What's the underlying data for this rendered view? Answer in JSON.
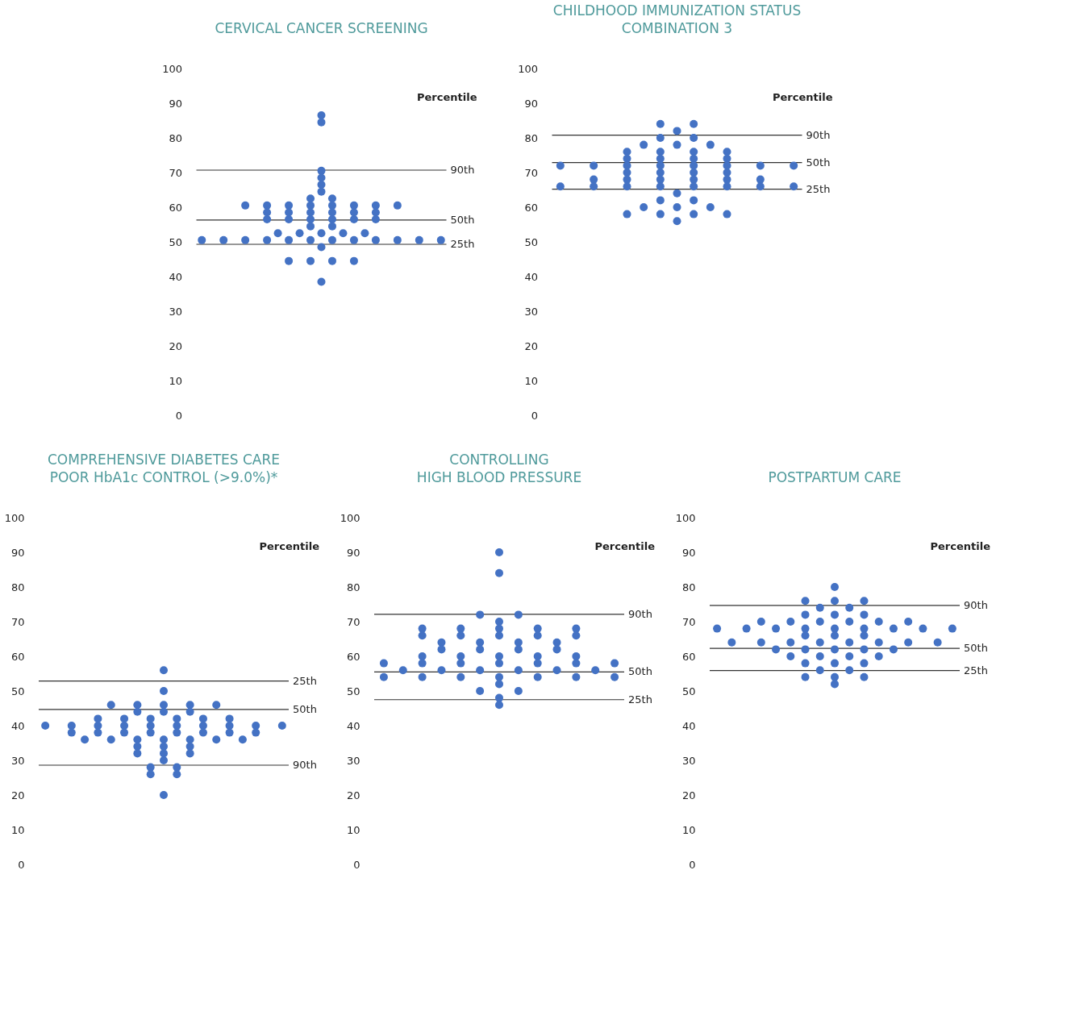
{
  "chart_data": [
    {
      "type": "scatter",
      "title": "CERVICAL CANCER SCREENING",
      "marker": "circle",
      "tick_labels": "y",
      "ylim": [
        0,
        100
      ],
      "yticks": [
        0,
        10,
        20,
        30,
        40,
        50,
        60,
        70,
        80,
        90,
        100
      ],
      "annotations": [
        "Percentile"
      ],
      "ref_lines": [
        {
          "axis": "y",
          "value": 70.7,
          "label": "90th"
        },
        {
          "axis": "y",
          "value": 56.3,
          "label": "50th"
        },
        {
          "axis": "y",
          "value": 49.3,
          "label": "25th"
        }
      ],
      "categories": [
        null,
        null,
        null,
        null,
        null,
        null,
        null,
        null,
        null,
        null,
        null,
        null,
        null,
        null,
        null,
        null,
        null,
        null,
        null,
        null,
        null,
        null,
        null
      ],
      "series": [
        {
          "color": "#4472c4",
          "values": [
            50.5,
            null,
            50.5,
            null,
            60.5,
            null,
            60.5,
            52.5,
            60.5,
            52.5,
            62.5,
            86.5,
            62.5,
            52.5,
            60.5,
            52.5,
            60.5,
            null,
            60.5,
            null,
            50.5,
            null,
            50.5
          ]
        },
        {
          "color": "#4472c4",
          "values": [
            null,
            null,
            null,
            null,
            50.5,
            null,
            58.5,
            null,
            58.5,
            null,
            60.5,
            84.5,
            60.5,
            null,
            58.5,
            null,
            58.5,
            null,
            50.5,
            null,
            null,
            null,
            null
          ]
        },
        {
          "color": "#4472c4",
          "values": [
            null,
            null,
            null,
            null,
            null,
            null,
            56.5,
            null,
            56.5,
            null,
            58.5,
            70.5,
            58.5,
            null,
            56.5,
            null,
            56.5,
            null,
            null,
            null,
            null,
            null,
            null
          ]
        },
        {
          "color": "#4472c4",
          "values": [
            null,
            null,
            null,
            null,
            null,
            null,
            50.5,
            null,
            50.5,
            null,
            56.5,
            68.5,
            56.5,
            null,
            50.5,
            null,
            50.5,
            null,
            null,
            null,
            null,
            null,
            null
          ]
        },
        {
          "color": "#4472c4",
          "values": [
            null,
            null,
            null,
            null,
            null,
            null,
            null,
            null,
            44.5,
            null,
            54.5,
            66.5,
            54.5,
            null,
            44.5,
            null,
            null,
            null,
            null,
            null,
            null,
            null,
            null
          ]
        },
        {
          "color": "#4472c4",
          "values": [
            null,
            null,
            null,
            null,
            null,
            null,
            null,
            null,
            null,
            null,
            50.5,
            64.5,
            50.5,
            null,
            null,
            null,
            null,
            null,
            null,
            null,
            null,
            null,
            null
          ]
        },
        {
          "color": "#4472c4",
          "values": [
            null,
            null,
            null,
            null,
            null,
            null,
            null,
            null,
            null,
            null,
            44.5,
            52.5,
            44.5,
            null,
            null,
            null,
            null,
            null,
            null,
            null,
            null,
            null,
            null
          ]
        },
        {
          "color": "#4472c4",
          "values": [
            null,
            null,
            null,
            null,
            null,
            null,
            null,
            null,
            null,
            null,
            null,
            48.5,
            null,
            null,
            null,
            null,
            null,
            null,
            null,
            null,
            null,
            null,
            null
          ]
        },
        {
          "color": "#4472c4",
          "values": [
            null,
            null,
            null,
            null,
            null,
            null,
            null,
            null,
            null,
            null,
            null,
            38.5,
            null,
            null,
            null,
            null,
            null,
            null,
            null,
            null,
            null,
            null,
            null
          ]
        }
      ]
    },
    {
      "type": "scatter",
      "title": "CHILDHOOD IMMUNIZATION STATUS\nCOMBINATION 3",
      "marker": "circle",
      "tick_labels": "y",
      "ylim": [
        0,
        100
      ],
      "yticks": [
        0,
        10,
        20,
        30,
        40,
        50,
        60,
        70,
        80,
        90,
        100
      ],
      "annotations": [
        "Percentile"
      ],
      "ref_lines": [
        {
          "axis": "y",
          "value": 80.8,
          "label": "90th"
        },
        {
          "axis": "y",
          "value": 72.9,
          "label": "50th"
        },
        {
          "axis": "y",
          "value": 65.2,
          "label": "25th"
        }
      ],
      "categories": [
        null,
        null,
        null,
        null,
        null,
        null,
        null,
        null,
        null,
        null,
        null,
        null,
        null,
        null,
        null
      ],
      "series": [
        {
          "color": "#4472c4",
          "values": [
            72,
            null,
            72,
            null,
            76,
            78,
            84,
            82,
            84,
            78,
            76,
            null,
            72,
            null,
            72
          ]
        },
        {
          "color": "#4472c4",
          "values": [
            66,
            null,
            68,
            null,
            74,
            60,
            80,
            78,
            80,
            60,
            74,
            null,
            68,
            null,
            66
          ]
        },
        {
          "color": "#4472c4",
          "values": [
            null,
            null,
            66,
            null,
            72,
            null,
            76,
            64,
            76,
            null,
            72,
            null,
            66,
            null,
            null
          ]
        },
        {
          "color": "#4472c4",
          "values": [
            null,
            null,
            null,
            null,
            70,
            null,
            74,
            60,
            74,
            null,
            70,
            null,
            null,
            null,
            null
          ]
        },
        {
          "color": "#4472c4",
          "values": [
            null,
            null,
            null,
            null,
            68,
            null,
            72,
            56,
            72,
            null,
            68,
            null,
            null,
            null,
            null
          ]
        },
        {
          "color": "#4472c4",
          "values": [
            null,
            null,
            null,
            null,
            66,
            null,
            70,
            null,
            70,
            null,
            66,
            null,
            null,
            null,
            null
          ]
        },
        {
          "color": "#4472c4",
          "values": [
            null,
            null,
            null,
            null,
            58,
            null,
            68,
            null,
            68,
            null,
            58,
            null,
            null,
            null,
            null
          ]
        },
        {
          "color": "#4472c4",
          "values": [
            null,
            null,
            null,
            null,
            null,
            null,
            66,
            null,
            66,
            null,
            null,
            null,
            null,
            null,
            null
          ]
        },
        {
          "color": "#4472c4",
          "values": [
            null,
            null,
            null,
            null,
            null,
            null,
            62,
            null,
            62,
            null,
            null,
            null,
            null,
            null,
            null
          ]
        },
        {
          "color": "#4472c4",
          "values": [
            null,
            null,
            null,
            null,
            null,
            null,
            58,
            null,
            58,
            null,
            null,
            null,
            null,
            null,
            null
          ]
        }
      ]
    },
    {
      "type": "scatter",
      "title": "COMPREHENSIVE DIABETES CARE\nPOOR HbA1c CONTROL (>9.0%)*",
      "marker": "circle",
      "tick_labels": "y",
      "ylim": [
        0,
        100
      ],
      "yticks": [
        0,
        10,
        20,
        30,
        40,
        50,
        60,
        70,
        80,
        90,
        100
      ],
      "annotations": [
        "Percentile"
      ],
      "ref_lines": [
        {
          "axis": "y",
          "value": 52.9,
          "label": "25th"
        },
        {
          "axis": "y",
          "value": 44.7,
          "label": "50th"
        },
        {
          "axis": "y",
          "value": 28.6,
          "label": "90th"
        }
      ],
      "categories": [
        null,
        null,
        null,
        null,
        null,
        null,
        null,
        null,
        null,
        null,
        null,
        null,
        null,
        null,
        null,
        null,
        null,
        null,
        null
      ],
      "series": [
        {
          "color": "#4472c4",
          "values": [
            40,
            null,
            40,
            36,
            42,
            46,
            42,
            46,
            42,
            56,
            42,
            46,
            42,
            46,
            42,
            36,
            40,
            null,
            40
          ]
        },
        {
          "color": "#4472c4",
          "values": [
            null,
            null,
            38,
            null,
            40,
            36,
            40,
            44,
            40,
            50,
            40,
            44,
            40,
            36,
            40,
            null,
            38,
            null,
            null
          ]
        },
        {
          "color": "#4472c4",
          "values": [
            null,
            null,
            null,
            null,
            38,
            null,
            38,
            36,
            38,
            46,
            38,
            36,
            38,
            null,
            38,
            null,
            null,
            null,
            null
          ]
        },
        {
          "color": "#4472c4",
          "values": [
            null,
            null,
            null,
            null,
            null,
            null,
            null,
            34,
            28,
            44,
            28,
            34,
            null,
            null,
            null,
            null,
            null,
            null,
            null
          ]
        },
        {
          "color": "#4472c4",
          "values": [
            null,
            null,
            null,
            null,
            null,
            null,
            null,
            32,
            26,
            36,
            26,
            32,
            null,
            null,
            null,
            null,
            null,
            null,
            null
          ]
        },
        {
          "color": "#4472c4",
          "values": [
            null,
            null,
            null,
            null,
            null,
            null,
            null,
            null,
            null,
            34,
            null,
            null,
            null,
            null,
            null,
            null,
            null,
            null,
            null
          ]
        },
        {
          "color": "#4472c4",
          "values": [
            null,
            null,
            null,
            null,
            null,
            null,
            null,
            null,
            null,
            32,
            null,
            null,
            null,
            null,
            null,
            null,
            null,
            null,
            null
          ]
        },
        {
          "color": "#4472c4",
          "values": [
            null,
            null,
            null,
            null,
            null,
            null,
            null,
            null,
            null,
            30,
            null,
            null,
            null,
            null,
            null,
            null,
            null,
            null,
            null
          ]
        },
        {
          "color": "#4472c4",
          "values": [
            null,
            null,
            null,
            null,
            null,
            null,
            null,
            null,
            null,
            20,
            null,
            null,
            null,
            null,
            null,
            null,
            null,
            null,
            null
          ]
        }
      ]
    },
    {
      "type": "scatter",
      "title": "CONTROLLING\nHIGH BLOOD PRESSURE",
      "marker": "circle",
      "tick_labels": "y",
      "ylim": [
        0,
        100
      ],
      "yticks": [
        0,
        10,
        20,
        30,
        40,
        50,
        60,
        70,
        80,
        90,
        100
      ],
      "annotations": [
        "Percentile"
      ],
      "ref_lines": [
        {
          "axis": "y",
          "value": 72.1,
          "label": "90th"
        },
        {
          "axis": "y",
          "value": 55.5,
          "label": "50th"
        },
        {
          "axis": "y",
          "value": 47.5,
          "label": "25th"
        }
      ],
      "categories": [
        null,
        null,
        null,
        null,
        null,
        null,
        null,
        null,
        null,
        null,
        null,
        null,
        null
      ],
      "series": [
        {
          "color": "#4472c4",
          "values": [
            58,
            56,
            68,
            64,
            68,
            72,
            90,
            72,
            68,
            64,
            68,
            56,
            58
          ]
        },
        {
          "color": "#4472c4",
          "values": [
            54,
            null,
            66,
            62,
            66,
            64,
            84,
            64,
            66,
            62,
            66,
            null,
            54
          ]
        },
        {
          "color": "#4472c4",
          "values": [
            null,
            null,
            60,
            56,
            60,
            62,
            70,
            62,
            60,
            56,
            60,
            null,
            null
          ]
        },
        {
          "color": "#4472c4",
          "values": [
            null,
            null,
            58,
            null,
            58,
            56,
            68,
            56,
            58,
            null,
            58,
            null,
            null
          ]
        },
        {
          "color": "#4472c4",
          "values": [
            null,
            null,
            54,
            null,
            54,
            50,
            66,
            50,
            54,
            null,
            54,
            null,
            null
          ]
        },
        {
          "color": "#4472c4",
          "values": [
            null,
            null,
            null,
            null,
            null,
            null,
            60,
            null,
            null,
            null,
            null,
            null,
            null
          ]
        },
        {
          "color": "#4472c4",
          "values": [
            null,
            null,
            null,
            null,
            null,
            null,
            58,
            null,
            null,
            null,
            null,
            null,
            null
          ]
        },
        {
          "color": "#4472c4",
          "values": [
            null,
            null,
            null,
            null,
            null,
            null,
            54,
            null,
            null,
            null,
            null,
            null,
            null
          ]
        },
        {
          "color": "#4472c4",
          "values": [
            null,
            null,
            null,
            null,
            null,
            null,
            52,
            null,
            null,
            null,
            null,
            null,
            null
          ]
        },
        {
          "color": "#4472c4",
          "values": [
            null,
            null,
            null,
            null,
            null,
            null,
            48,
            null,
            null,
            null,
            null,
            null,
            null
          ]
        },
        {
          "color": "#4472c4",
          "values": [
            null,
            null,
            null,
            null,
            null,
            null,
            46,
            null,
            null,
            null,
            null,
            null,
            null
          ]
        }
      ]
    },
    {
      "type": "scatter",
      "title": "POSTPARTUM CARE",
      "marker": "circle",
      "tick_labels": "y",
      "ylim": [
        0,
        100
      ],
      "yticks": [
        0,
        10,
        20,
        30,
        40,
        50,
        60,
        70,
        80,
        90,
        100
      ],
      "annotations": [
        "Percentile"
      ],
      "ref_lines": [
        {
          "axis": "y",
          "value": 74.7,
          "label": "90th"
        },
        {
          "axis": "y",
          "value": 62.3,
          "label": "50th"
        },
        {
          "axis": "y",
          "value": 55.9,
          "label": "25th"
        }
      ],
      "categories": [
        null,
        null,
        null,
        null,
        null,
        null,
        null,
        null,
        null,
        null,
        null,
        null,
        null,
        null,
        null,
        null,
        null
      ],
      "series": [
        {
          "color": "#4472c4",
          "values": [
            68,
            64,
            68,
            70,
            68,
            70,
            76,
            74,
            80,
            74,
            76,
            70,
            68,
            70,
            68,
            64,
            68
          ]
        },
        {
          "color": "#4472c4",
          "values": [
            null,
            null,
            null,
            64,
            62,
            64,
            72,
            70,
            76,
            70,
            72,
            64,
            62,
            64,
            null,
            null,
            null
          ]
        },
        {
          "color": "#4472c4",
          "values": [
            null,
            null,
            null,
            null,
            null,
            60,
            68,
            64,
            72,
            64,
            68,
            60,
            null,
            null,
            null,
            null,
            null
          ]
        },
        {
          "color": "#4472c4",
          "values": [
            null,
            null,
            null,
            null,
            null,
            null,
            66,
            60,
            68,
            60,
            66,
            null,
            null,
            null,
            null,
            null,
            null
          ]
        },
        {
          "color": "#4472c4",
          "values": [
            null,
            null,
            null,
            null,
            null,
            null,
            62,
            56,
            66,
            56,
            62,
            null,
            null,
            null,
            null,
            null,
            null
          ]
        },
        {
          "color": "#4472c4",
          "values": [
            null,
            null,
            null,
            null,
            null,
            null,
            58,
            null,
            62,
            null,
            58,
            null,
            null,
            null,
            null,
            null,
            null
          ]
        },
        {
          "color": "#4472c4",
          "values": [
            null,
            null,
            null,
            null,
            null,
            null,
            54,
            null,
            58,
            null,
            54,
            null,
            null,
            null,
            null,
            null,
            null
          ]
        },
        {
          "color": "#4472c4",
          "values": [
            null,
            null,
            null,
            null,
            null,
            null,
            null,
            null,
            54,
            null,
            null,
            null,
            null,
            null,
            null,
            null,
            null
          ]
        },
        {
          "color": "#4472c4",
          "values": [
            null,
            null,
            null,
            null,
            null,
            null,
            null,
            null,
            52,
            null,
            null,
            null,
            null,
            null,
            null,
            null,
            null
          ]
        }
      ]
    }
  ]
}
